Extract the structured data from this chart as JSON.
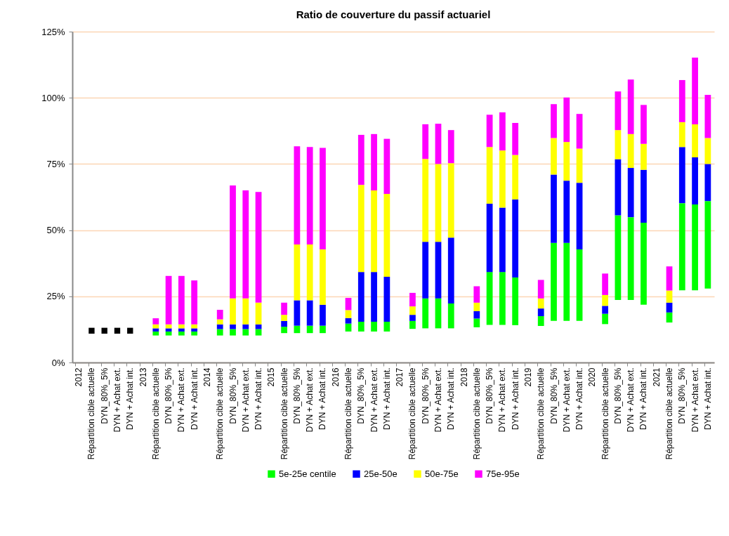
{
  "chart_data": {
    "type": "bar",
    "title": "Ratio de couverture du passif actuariel",
    "categories": [
      "2012",
      "Répartition cible actuelle",
      "DYN_80%_5%",
      "DYN + Achat ext.",
      "DYN + Achat int.",
      "2013",
      "Répartition cible actuelle",
      "DYN_80%_5%",
      "DYN + Achat ext.",
      "DYN + Achat int.",
      "2014",
      "Répartition cible actuelle",
      "DYN_80%_5%",
      "DYN + Achat ext.",
      "DYN + Achat int.",
      "2015",
      "Répartition cible actuelle",
      "DYN_80%_5%",
      "DYN + Achat ext.",
      "DYN + Achat int.",
      "2016",
      "Répartition cible actuelle",
      "DYN_80%_5%",
      "DYN + Achat ext.",
      "DYN + Achat int.",
      "2017",
      "Répartition cible actuelle",
      "DYN_80%_5%",
      "DYN + Achat ext.",
      "DYN + Achat int.",
      "2018",
      "Répartition cible actuelle",
      "DYN_80%_5%",
      "DYN + Achat ext.",
      "DYN + Achat int.",
      "2019",
      "Répartition cible actuelle",
      "DYN_80%_5%",
      "DYN + Achat ext.",
      "DYN + Achat int.",
      "2020",
      "Répartition cible actuelle",
      "DYN_80%_5%",
      "DYN + Achat ext.",
      "DYN + Achat int.",
      "2021",
      "Répartition cible actuelle",
      "DYN_80%_5%",
      "DYN + Achat ext.",
      "DYN + Achat int."
    ],
    "stacked": true,
    "series": [
      {
        "name": "5e-25e centile",
        "color": "#00ff00",
        "base": [
          null,
          null,
          null,
          null,
          null,
          null,
          10.2,
          10.2,
          10.2,
          10.2,
          null,
          10.2,
          10.2,
          10.2,
          10.2,
          null,
          11.1,
          11.1,
          11.1,
          11.1,
          null,
          11.7,
          11.7,
          11.7,
          11.7,
          null,
          12.7,
          12.9,
          12.9,
          12.9,
          null,
          13.3,
          14.2,
          14.2,
          14.1,
          null,
          13.8,
          15.7,
          15.7,
          15.7,
          null,
          14.5,
          23.6,
          23.6,
          21.8,
          null,
          15.1,
          27.3,
          27.3,
          27.9
        ],
        "values": [
          null,
          null,
          null,
          null,
          null,
          null,
          1.5,
          1.5,
          1.5,
          1.5,
          null,
          2.4,
          2.4,
          2.4,
          2.4,
          null,
          2.4,
          2.8,
          2.8,
          2.8,
          null,
          3.0,
          3.7,
          3.7,
          3.7,
          null,
          3.0,
          11.3,
          11.3,
          9.4,
          null,
          3.3,
          20.0,
          20.0,
          18.0,
          null,
          3.7,
          29.5,
          29.5,
          27.0,
          null,
          3.9,
          32.0,
          31.3,
          31.0,
          null,
          3.8,
          32.9,
          32.4,
          33.1
        ]
      },
      {
        "name": "25e-50e",
        "color": "#0000ff",
        "values": [
          null,
          null,
          null,
          null,
          null,
          null,
          1.2,
          1.2,
          1.2,
          1.2,
          null,
          1.8,
          1.8,
          1.8,
          1.8,
          null,
          2.2,
          9.6,
          9.6,
          7.9,
          null,
          2.1,
          18.8,
          18.8,
          17.0,
          null,
          2.3,
          21.4,
          21.4,
          24.9,
          null,
          2.8,
          25.8,
          24.3,
          29.5,
          null,
          2.9,
          25.8,
          23.5,
          25.2,
          null,
          3.0,
          21.2,
          18.6,
          20.0,
          null,
          3.7,
          21.2,
          17.8,
          14.0
        ]
      },
      {
        "name": "50e-75e",
        "color": "#ffff00",
        "values": [
          null,
          null,
          null,
          null,
          null,
          null,
          1.5,
          1.5,
          1.5,
          1.5,
          null,
          1.9,
          9.8,
          9.8,
          8.2,
          null,
          2.3,
          21.1,
          21.1,
          20.9,
          null,
          3.0,
          32.9,
          30.8,
          31.3,
          null,
          3.2,
          31.3,
          29.4,
          28.1,
          null,
          3.2,
          21.4,
          21.6,
          16.8,
          null,
          3.8,
          13.8,
          14.6,
          12.9,
          null,
          4.1,
          11.0,
          12.8,
          9.8,
          null,
          4.6,
          9.4,
          12.5,
          9.8
        ]
      },
      {
        "name": "75e-95e",
        "color": "#ff00ff",
        "values": [
          null,
          null,
          null,
          null,
          null,
          null,
          2.3,
          18.3,
          18.3,
          16.6,
          null,
          3.6,
          42.7,
          40.8,
          41.8,
          null,
          4.6,
          37.1,
          36.8,
          38.4,
          null,
          4.6,
          18.9,
          21.3,
          20.8,
          null,
          5.1,
          13.1,
          15.2,
          12.5,
          null,
          6.2,
          12.2,
          14.4,
          12.1,
          null,
          7.0,
          12.8,
          16.8,
          13.1,
          null,
          8.1,
          14.6,
          20.6,
          14.7,
          null,
          9.1,
          15.9,
          25.2,
          16.3
        ]
      },
      {
        "type": "scatter",
        "color": "#000000",
        "values": [
          null,
          12,
          12,
          12,
          12,
          null,
          null,
          null,
          null,
          null,
          null,
          null,
          null,
          null,
          null,
          null,
          null,
          null,
          null,
          null,
          null,
          null,
          null,
          null,
          null,
          null,
          null,
          null,
          null,
          null,
          null,
          null,
          null,
          null,
          null,
          null,
          null,
          null,
          null,
          null,
          null,
          null,
          null,
          null,
          null,
          null,
          null,
          null,
          null,
          null
        ]
      }
    ],
    "marker": "square",
    "ylim": [
      0,
      125
    ],
    "yticks": [
      {
        "value": 0,
        "label": "0%"
      },
      {
        "value": 25,
        "label": "25%"
      },
      {
        "value": 50,
        "label": "50%"
      },
      {
        "value": 75,
        "label": "75%"
      },
      {
        "value": 100,
        "label": "100%"
      },
      {
        "value": 125,
        "label": "125%"
      }
    ],
    "grid": "y",
    "legend": "bottom"
  }
}
